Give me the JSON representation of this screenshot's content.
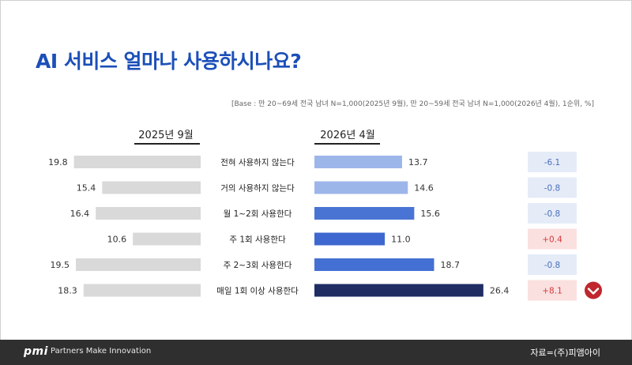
{
  "title": "AI 서비스 얼마나 사용하시나요?",
  "base_note": "[Base : 만 20~69세 전국 남녀 N=1,000(2025년 9월), 만 20~59세 전국 남녀 N=1,000(2026년 4월), 1순위, %]",
  "periods": {
    "left": "2025년 9월",
    "right": "2026년 4월"
  },
  "colors": {
    "left_bar": "#d9d9d9",
    "right_bars": [
      "#9db6ea",
      "#9db6ea",
      "#4a74d4",
      "#3e68cf",
      "#4470d3",
      "#1f2d63"
    ],
    "diff_up_bg": "#fbe0e0",
    "diff_up_text": "#d43c3c",
    "diff_down_bg": "#e5ecf8",
    "diff_down_text": "#4a6fb9",
    "arrow_circle": "#c0262d"
  },
  "chart_data": {
    "type": "bar",
    "layout": "butterfly",
    "categories": [
      "전혀 사용하지 않는다",
      "거의 사용하지 않는다",
      "월 1~2회 사용한다",
      "주 1회 사용한다",
      "주 2~3회 사용한다",
      "매일 1회 이상 사용한다"
    ],
    "series": [
      {
        "name": "2025년 9월",
        "values": [
          19.8,
          15.4,
          16.4,
          10.6,
          19.5,
          18.3
        ]
      },
      {
        "name": "2026년 4월",
        "values": [
          13.7,
          14.6,
          15.6,
          11.0,
          18.7,
          26.4
        ]
      }
    ],
    "value_labels_left": [
      "19.8",
      "15.4",
      "16.4",
      "10.6",
      "19.5",
      "18.3"
    ],
    "value_labels_right": [
      "13.7",
      "14.6",
      "15.6",
      "11.0",
      "18.7",
      "26.4"
    ],
    "differences": [
      -6.1,
      -0.8,
      -0.8,
      0.4,
      -0.8,
      8.1
    ],
    "difference_labels": [
      "-6.1",
      "-0.8",
      "-0.8",
      "+0.4",
      "-0.8",
      "+8.1"
    ],
    "highlight_icon": "chevron-down-circle-icon"
  },
  "footer": {
    "logo": "pmi",
    "tagline": "Partners Make Innovation",
    "source": "자료=(주)피앰아이"
  }
}
